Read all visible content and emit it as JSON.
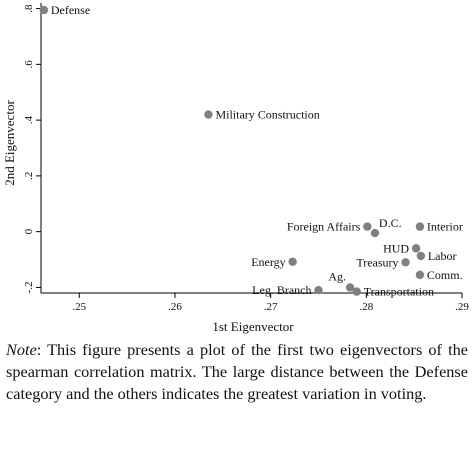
{
  "chart_data": {
    "type": "scatter",
    "xlabel": "1st Eigenvector",
    "ylabel": "2nd Eigenvector",
    "xlim": [
      0.246,
      0.29
    ],
    "ylim": [
      -0.22,
      0.82
    ],
    "xticks": [
      0.25,
      0.26,
      0.27,
      0.28,
      0.29
    ],
    "xtick_labels": [
      ".25",
      ".26",
      ".27",
      ".28",
      ".29"
    ],
    "yticks": [
      -0.2,
      0,
      0.2,
      0.4,
      0.6,
      0.8
    ],
    "ytick_labels": [
      "-.2",
      "0",
      ".2",
      ".4",
      ".6",
      ".8"
    ],
    "grid": false,
    "marker_color": "#808080",
    "points": [
      {
        "label": "Defense",
        "x": 0.2463,
        "y": 0.795,
        "pos": "right"
      },
      {
        "label": "Military Construction",
        "x": 0.2635,
        "y": 0.42,
        "pos": "right"
      },
      {
        "label": "Foreign Affairs",
        "x": 0.2801,
        "y": 0.018,
        "pos": "left"
      },
      {
        "label": "D.C.",
        "x": 0.2809,
        "y": -0.005,
        "pos": "upright"
      },
      {
        "label": "Interior",
        "x": 0.2856,
        "y": 0.018,
        "pos": "right"
      },
      {
        "label": "HUD",
        "x": 0.2852,
        "y": -0.06,
        "pos": "left"
      },
      {
        "label": "Labor",
        "x": 0.2857,
        "y": -0.087,
        "pos": "right"
      },
      {
        "label": "Treasury",
        "x": 0.2841,
        "y": -0.11,
        "pos": "left"
      },
      {
        "label": "Energy",
        "x": 0.2723,
        "y": -0.108,
        "pos": "left"
      },
      {
        "label": "Comm.",
        "x": 0.2856,
        "y": -0.155,
        "pos": "right"
      },
      {
        "label": "Ag.",
        "x": 0.2783,
        "y": -0.2,
        "pos": "upleft"
      },
      {
        "label": "Leg. Branch",
        "x": 0.275,
        "y": -0.21,
        "pos": "left"
      },
      {
        "label": "Transportation",
        "x": 0.279,
        "y": -0.215,
        "pos": "right"
      }
    ]
  },
  "caption": {
    "note_label": "Note",
    "text": ": This figure presents a plot of the first two eigenvectors of the spearman correlation matrix. The large distance between the Defense category and the others indicates the greatest variation in voting."
  }
}
